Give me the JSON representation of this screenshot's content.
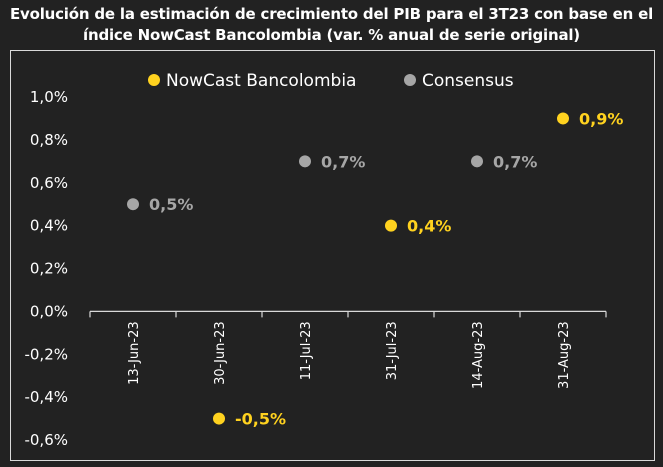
{
  "chart_data": {
    "type": "scatter",
    "title_line1": "Evolución de la estimación de crecimiento del PIB para el  3T23 con base en el",
    "title_line2": "índice NowCast Bancolombia (var. % anual de serie original)",
    "categories": [
      "13-Jun-23",
      "30-Jun-23",
      "11-Jul-23",
      "31-Jul-23",
      "14-Aug-23",
      "31-Aug-23"
    ],
    "ylim": [
      -0.6,
      1.0
    ],
    "yticks": [
      "1,0%",
      "0,8%",
      "0,6%",
      "0,4%",
      "0,2%",
      "0,0%",
      "-0,2%",
      "-0,4%",
      "-0,6%"
    ],
    "legend_position": "top",
    "series": [
      {
        "name": "NowCast Bancolombia",
        "color": "#FFD21F",
        "points": [
          {
            "category": "30-Jun-23",
            "value": -0.5,
            "label": "-0,5%"
          },
          {
            "category": "31-Jul-23",
            "value": 0.4,
            "label": "0,4%"
          },
          {
            "category": "31-Aug-23",
            "value": 0.9,
            "label": "0,9%"
          }
        ]
      },
      {
        "name": "Consensus",
        "color": "#A6A6A6",
        "points": [
          {
            "category": "13-Jun-23",
            "value": 0.5,
            "label": "0,5%"
          },
          {
            "category": "11-Jul-23",
            "value": 0.7,
            "label": "0,7%"
          },
          {
            "category": "14-Aug-23",
            "value": 0.7,
            "label": "0,7%"
          }
        ]
      }
    ]
  }
}
